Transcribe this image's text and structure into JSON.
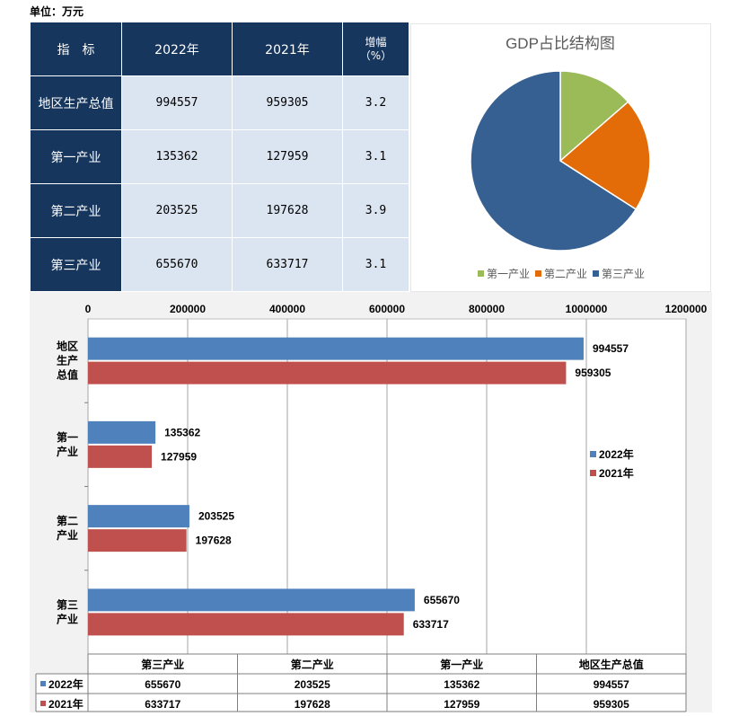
{
  "unit_label": "单位：万元",
  "table": {
    "headers": [
      "指　标",
      "2022年",
      "2021年",
      "增幅"
    ],
    "pct_unit": "（%）",
    "rows": [
      {
        "name": "地区生产总值",
        "v2022": "994557",
        "v2021": "959305",
        "growth": "3.2"
      },
      {
        "name": "第一产业",
        "v2022": "135362",
        "v2021": "127959",
        "growth": "3.1"
      },
      {
        "name": "第二产业",
        "v2022": "203525",
        "v2021": "197628",
        "growth": "3.9"
      },
      {
        "name": "第三产业",
        "v2022": "655670",
        "v2021": "633717",
        "growth": "3.1"
      }
    ]
  },
  "colors": {
    "header_bg": "#17365d",
    "cell_bg": "#dbe5f1",
    "pie_primary": "#9bbb59",
    "pie_secondary": "#e36c09",
    "pie_tertiary": "#366092",
    "bar_2022": "#4f81bd",
    "bar_2021": "#c0504d"
  },
  "chart_data": [
    {
      "type": "pie",
      "title": "GDP占比结构图",
      "labels": [
        "第一产业",
        "第二产业",
        "第三产业"
      ],
      "values": [
        135362,
        203525,
        655670
      ],
      "legend": "bottom"
    },
    {
      "type": "bar",
      "orientation": "horizontal",
      "categories": [
        "地区生产总值",
        "第一产业",
        "第二产业",
        "第三产业"
      ],
      "category_labels": [
        [
          "地区",
          "生产",
          "总值"
        ],
        [
          "第一",
          "产业"
        ],
        [
          "第二",
          "产业"
        ],
        [
          "第三",
          "产业"
        ]
      ],
      "series": [
        {
          "name": "2022年",
          "values": [
            994557,
            135362,
            203525,
            655670
          ]
        },
        {
          "name": "2021年",
          "values": [
            959305,
            127959,
            197628,
            633717
          ]
        }
      ],
      "xlim": [
        0,
        1200000
      ],
      "x_ticks": [
        "0",
        "200000",
        "400000",
        "600000",
        "800000",
        "1000000",
        "1200000"
      ],
      "grid": true,
      "legend": "right",
      "data_table": {
        "columns": [
          "第三产业",
          "第二产业",
          "第一产业",
          "地区生产总值"
        ],
        "rows": [
          {
            "name": "2022年",
            "values": [
              "655670",
              "203525",
              "135362",
              "994557"
            ]
          },
          {
            "name": "2021年",
            "values": [
              "633717",
              "197628",
              "127959",
              "959305"
            ]
          }
        ]
      }
    }
  ]
}
